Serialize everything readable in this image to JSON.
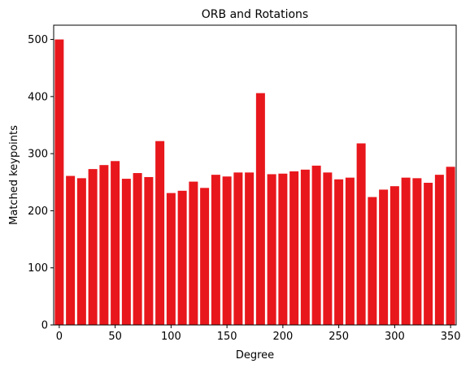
{
  "chart_data": {
    "type": "bar",
    "title": "ORB and Rotations",
    "xlabel": "Degree",
    "ylabel": "Matched keypoints",
    "x": [
      0,
      10,
      20,
      30,
      40,
      50,
      60,
      70,
      80,
      90,
      100,
      110,
      120,
      130,
      140,
      150,
      160,
      170,
      180,
      190,
      200,
      210,
      220,
      230,
      240,
      250,
      260,
      270,
      280,
      290,
      300,
      310,
      320,
      330,
      340,
      350
    ],
    "values": [
      500,
      261,
      257,
      273,
      280,
      287,
      256,
      266,
      259,
      322,
      231,
      235,
      251,
      240,
      263,
      260,
      267,
      267,
      406,
      264,
      265,
      269,
      272,
      279,
      267,
      255,
      258,
      318,
      224,
      237,
      243,
      258,
      257,
      249,
      263,
      277
    ],
    "xticks": [
      0,
      50,
      100,
      150,
      200,
      250,
      300,
      350
    ],
    "yticks": [
      0,
      100,
      200,
      300,
      400,
      500
    ],
    "xlim": [
      -5,
      355
    ],
    "ylim": [
      0,
      525
    ],
    "grid": false,
    "bar_color": "#e8171c"
  }
}
